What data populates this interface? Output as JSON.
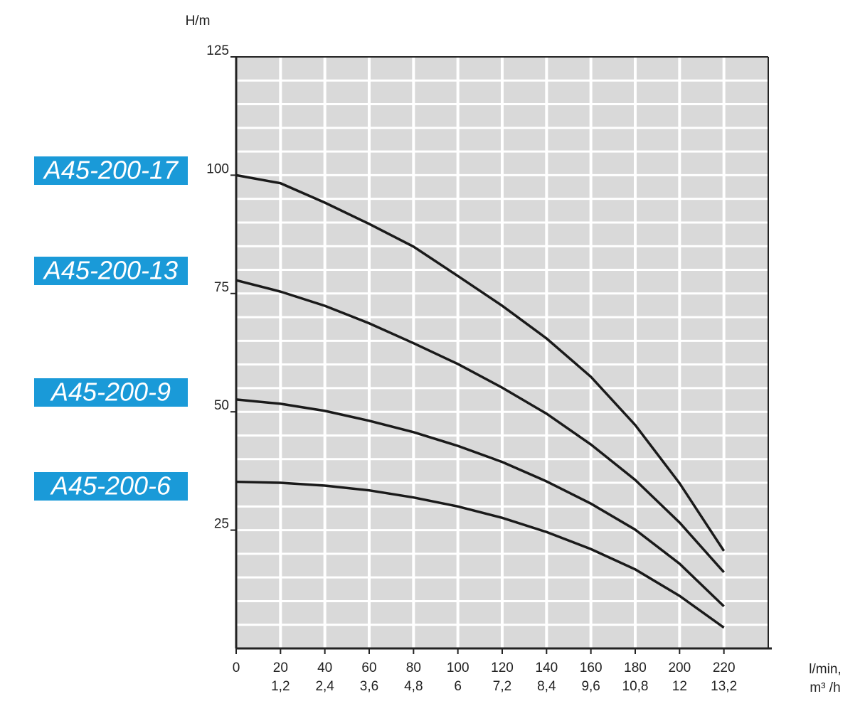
{
  "chart_data": {
    "type": "line",
    "y_label": "H/m",
    "x_label": "l/min,",
    "x_label_secondary": "m³ /h",
    "xlim": [
      0,
      240
    ],
    "ylim": [
      0,
      125
    ],
    "xticks": [
      0,
      20,
      40,
      60,
      80,
      100,
      120,
      140,
      160,
      180,
      200,
      220
    ],
    "xticks_secondary": [
      {
        "value": 20,
        "label": "1,2"
      },
      {
        "value": 40,
        "label": "2,4"
      },
      {
        "value": 60,
        "label": "3,6"
      },
      {
        "value": 80,
        "label": "4,8"
      },
      {
        "value": 100,
        "label": "6"
      },
      {
        "value": 120,
        "label": "7,2"
      },
      {
        "value": 140,
        "label": "8,4"
      },
      {
        "value": 160,
        "label": "9,6"
      },
      {
        "value": 180,
        "label": "10,8"
      },
      {
        "value": 200,
        "label": "12"
      },
      {
        "value": 220,
        "label": "13,2"
      }
    ],
    "yticks": [
      25,
      50,
      75,
      100,
      125
    ],
    "xgrid": [
      20,
      40,
      60,
      80,
      100,
      120,
      140,
      160,
      180,
      200,
      220
    ],
    "ygrid": [
      5,
      10,
      15,
      20,
      25,
      30,
      35,
      40,
      45,
      50,
      55,
      60,
      65,
      70,
      75,
      80,
      85,
      90,
      95,
      100,
      105,
      110,
      115,
      120
    ],
    "grid": true,
    "plot_background": "#d9d9d9",
    "legend_color": "#1a9ad8",
    "x": [
      0,
      20,
      40,
      60,
      80,
      100,
      120,
      140,
      160,
      180,
      200,
      220
    ],
    "series": [
      {
        "name": "A45-200-17",
        "color": "#1a1a1a",
        "values": [
          100,
          98.3,
          94.2,
          89.7,
          84.9,
          78.7,
          72.4,
          65.5,
          57.4,
          47.2,
          34.9,
          20.6
        ]
      },
      {
        "name": "A45-200-13",
        "color": "#1a1a1a",
        "values": [
          77.8,
          75.4,
          72.4,
          68.7,
          64.5,
          60.1,
          55.1,
          49.6,
          43.1,
          35.6,
          26.6,
          16.1
        ]
      },
      {
        "name": "A45-200-9",
        "color": "#1a1a1a",
        "values": [
          52.6,
          51.7,
          50.2,
          48.1,
          45.7,
          42.8,
          39.4,
          35.3,
          30.6,
          25.1,
          17.9,
          8.9
        ]
      },
      {
        "name": "A45-200-6",
        "color": "#1a1a1a",
        "values": [
          35.2,
          35,
          34.4,
          33.4,
          31.9,
          30,
          27.6,
          24.6,
          21,
          16.7,
          11.1,
          4.4
        ]
      }
    ]
  }
}
